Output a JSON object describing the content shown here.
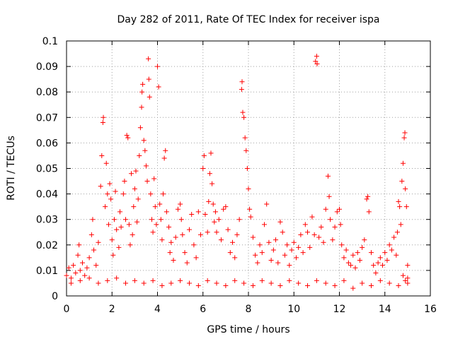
{
  "chart_data": {
    "type": "scatter",
    "title": "Day 282 of 2011, Rate Of TEC Index for receiver ispa",
    "xlabel": "GPS time / hours",
    "ylabel": "ROTI / TECUs",
    "xlim": [
      0,
      16
    ],
    "ylim": [
      0,
      0.1
    ],
    "xticks": [
      "0",
      "2",
      "4",
      "6",
      "8",
      "10",
      "12",
      "14",
      "16"
    ],
    "yticks": [
      "0",
      "0.01",
      "0.02",
      "0.03",
      "0.04",
      "0.05",
      "0.06",
      "0.07",
      "0.08",
      "0.09",
      "0.1"
    ],
    "xtick_values": [
      0,
      2,
      4,
      6,
      8,
      10,
      12,
      14,
      16
    ],
    "ytick_values": [
      0,
      0.01,
      0.02,
      0.03,
      0.04,
      0.05,
      0.06,
      0.07,
      0.08,
      0.09,
      0.1
    ],
    "grid": true,
    "marker": "plus",
    "color": "#ff0000",
    "series": [
      {
        "points": [
          [
            0.0,
            0.008
          ],
          [
            0.1,
            0.011
          ],
          [
            0.2,
            0.007
          ],
          [
            0.3,
            0.012
          ],
          [
            0.4,
            0.009
          ],
          [
            0.5,
            0.016
          ],
          [
            0.55,
            0.02
          ],
          [
            0.6,
            0.01
          ],
          [
            0.7,
            0.013
          ],
          [
            0.8,
            0.008
          ],
          [
            0.9,
            0.011
          ],
          [
            1.0,
            0.015
          ],
          [
            1.1,
            0.024
          ],
          [
            1.15,
            0.03
          ],
          [
            1.2,
            0.018
          ],
          [
            1.3,
            0.012
          ],
          [
            1.4,
            0.021
          ],
          [
            1.5,
            0.043
          ],
          [
            1.55,
            0.055
          ],
          [
            1.6,
            0.068
          ],
          [
            1.62,
            0.07
          ],
          [
            1.7,
            0.035
          ],
          [
            1.75,
            0.052
          ],
          [
            1.8,
            0.04
          ],
          [
            1.85,
            0.028
          ],
          [
            1.9,
            0.044
          ],
          [
            1.95,
            0.038
          ],
          [
            2.0,
            0.022
          ],
          [
            2.05,
            0.016
          ],
          [
            2.1,
            0.03
          ],
          [
            2.15,
            0.041
          ],
          [
            2.2,
            0.026
          ],
          [
            2.3,
            0.019
          ],
          [
            2.35,
            0.033
          ],
          [
            2.4,
            0.027
          ],
          [
            2.5,
            0.04
          ],
          [
            2.55,
            0.045
          ],
          [
            2.6,
            0.03
          ],
          [
            2.65,
            0.063
          ],
          [
            2.7,
            0.062
          ],
          [
            2.75,
            0.028
          ],
          [
            2.8,
            0.02
          ],
          [
            2.85,
            0.048
          ],
          [
            2.9,
            0.024
          ],
          [
            2.95,
            0.035
          ],
          [
            3.0,
            0.042
          ],
          [
            3.05,
            0.049
          ],
          [
            3.1,
            0.029
          ],
          [
            3.15,
            0.038
          ],
          [
            3.2,
            0.055
          ],
          [
            3.25,
            0.066
          ],
          [
            3.3,
            0.074
          ],
          [
            3.32,
            0.08
          ],
          [
            3.35,
            0.083
          ],
          [
            3.4,
            0.061
          ],
          [
            3.45,
            0.057
          ],
          [
            3.5,
            0.051
          ],
          [
            3.55,
            0.045
          ],
          [
            3.6,
            0.093
          ],
          [
            3.62,
            0.085
          ],
          [
            3.65,
            0.078
          ],
          [
            3.7,
            0.04
          ],
          [
            3.75,
            0.03
          ],
          [
            3.8,
            0.025
          ],
          [
            3.85,
            0.046
          ],
          [
            3.9,
            0.035
          ],
          [
            3.95,
            0.028
          ],
          [
            4.0,
            0.09
          ],
          [
            4.05,
            0.082
          ],
          [
            4.1,
            0.036
          ],
          [
            4.15,
            0.03
          ],
          [
            4.2,
            0.022
          ],
          [
            4.25,
            0.04
          ],
          [
            4.3,
            0.054
          ],
          [
            4.35,
            0.057
          ],
          [
            4.4,
            0.033
          ],
          [
            4.5,
            0.027
          ],
          [
            4.55,
            0.017
          ],
          [
            4.6,
            0.021
          ],
          [
            4.7,
            0.014
          ],
          [
            4.8,
            0.023
          ],
          [
            4.9,
            0.034
          ],
          [
            5.0,
            0.036
          ],
          [
            5.05,
            0.03
          ],
          [
            5.1,
            0.024
          ],
          [
            5.2,
            0.017
          ],
          [
            5.3,
            0.013
          ],
          [
            5.4,
            0.026
          ],
          [
            5.5,
            0.032
          ],
          [
            5.6,
            0.02
          ],
          [
            5.7,
            0.015
          ],
          [
            5.8,
            0.033
          ],
          [
            5.9,
            0.024
          ],
          [
            6.0,
            0.05
          ],
          [
            6.05,
            0.055
          ],
          [
            6.1,
            0.032
          ],
          [
            6.2,
            0.025
          ],
          [
            6.25,
            0.037
          ],
          [
            6.3,
            0.048
          ],
          [
            6.35,
            0.056
          ],
          [
            6.4,
            0.044
          ],
          [
            6.45,
            0.036
          ],
          [
            6.5,
            0.029
          ],
          [
            6.55,
            0.033
          ],
          [
            6.6,
            0.025
          ],
          [
            6.7,
            0.03
          ],
          [
            6.8,
            0.022
          ],
          [
            6.9,
            0.034
          ],
          [
            7.0,
            0.035
          ],
          [
            7.1,
            0.026
          ],
          [
            7.2,
            0.017
          ],
          [
            7.3,
            0.021
          ],
          [
            7.4,
            0.015
          ],
          [
            7.5,
            0.024
          ],
          [
            7.6,
            0.03
          ],
          [
            7.7,
            0.081
          ],
          [
            7.72,
            0.084
          ],
          [
            7.75,
            0.072
          ],
          [
            7.8,
            0.07
          ],
          [
            7.85,
            0.062
          ],
          [
            7.9,
            0.057
          ],
          [
            7.95,
            0.05
          ],
          [
            8.0,
            0.042
          ],
          [
            8.05,
            0.034
          ],
          [
            8.1,
            0.031
          ],
          [
            8.2,
            0.023
          ],
          [
            8.3,
            0.016
          ],
          [
            8.4,
            0.013
          ],
          [
            8.5,
            0.02
          ],
          [
            8.6,
            0.017
          ],
          [
            8.7,
            0.028
          ],
          [
            8.8,
            0.036
          ],
          [
            8.9,
            0.021
          ],
          [
            9.0,
            0.014
          ],
          [
            9.1,
            0.018
          ],
          [
            9.2,
            0.022
          ],
          [
            9.3,
            0.013
          ],
          [
            9.4,
            0.029
          ],
          [
            9.5,
            0.025
          ],
          [
            9.6,
            0.016
          ],
          [
            9.7,
            0.02
          ],
          [
            9.8,
            0.012
          ],
          [
            9.9,
            0.018
          ],
          [
            10.0,
            0.021
          ],
          [
            10.1,
            0.015
          ],
          [
            10.2,
            0.019
          ],
          [
            10.3,
            0.024
          ],
          [
            10.4,
            0.017
          ],
          [
            10.5,
            0.028
          ],
          [
            10.6,
            0.025
          ],
          [
            10.7,
            0.019
          ],
          [
            10.8,
            0.031
          ],
          [
            10.9,
            0.024
          ],
          [
            10.95,
            0.092
          ],
          [
            11.0,
            0.094
          ],
          [
            11.02,
            0.091
          ],
          [
            11.1,
            0.023
          ],
          [
            11.2,
            0.027
          ],
          [
            11.3,
            0.021
          ],
          [
            11.4,
            0.034
          ],
          [
            11.5,
            0.047
          ],
          [
            11.55,
            0.039
          ],
          [
            11.6,
            0.03
          ],
          [
            11.7,
            0.022
          ],
          [
            11.8,
            0.027
          ],
          [
            11.9,
            0.033
          ],
          [
            12.0,
            0.034
          ],
          [
            12.05,
            0.028
          ],
          [
            12.1,
            0.02
          ],
          [
            12.2,
            0.015
          ],
          [
            12.3,
            0.018
          ],
          [
            12.4,
            0.013
          ],
          [
            12.5,
            0.012
          ],
          [
            12.6,
            0.016
          ],
          [
            12.7,
            0.011
          ],
          [
            12.8,
            0.017
          ],
          [
            12.9,
            0.014
          ],
          [
            13.0,
            0.019
          ],
          [
            13.1,
            0.022
          ],
          [
            13.2,
            0.038
          ],
          [
            13.25,
            0.039
          ],
          [
            13.3,
            0.033
          ],
          [
            13.4,
            0.017
          ],
          [
            13.5,
            0.012
          ],
          [
            13.6,
            0.009
          ],
          [
            13.7,
            0.013
          ],
          [
            13.8,
            0.015
          ],
          [
            13.9,
            0.012
          ],
          [
            14.0,
            0.017
          ],
          [
            14.1,
            0.014
          ],
          [
            14.2,
            0.02
          ],
          [
            14.3,
            0.018
          ],
          [
            14.4,
            0.023
          ],
          [
            14.5,
            0.016
          ],
          [
            14.55,
            0.025
          ],
          [
            14.6,
            0.037
          ],
          [
            14.65,
            0.035
          ],
          [
            14.7,
            0.028
          ],
          [
            14.75,
            0.045
          ],
          [
            14.8,
            0.052
          ],
          [
            14.85,
            0.062
          ],
          [
            14.88,
            0.064
          ],
          [
            14.9,
            0.042
          ],
          [
            14.95,
            0.035
          ],
          [
            15.0,
            0.012
          ],
          [
            15.0,
            0.007
          ],
          [
            14.9,
            0.006
          ],
          [
            14.8,
            0.008
          ],
          [
            0.2,
            0.005
          ],
          [
            0.6,
            0.006
          ],
          [
            1.0,
            0.007
          ],
          [
            1.4,
            0.005
          ],
          [
            1.8,
            0.006
          ],
          [
            2.2,
            0.007
          ],
          [
            2.6,
            0.005
          ],
          [
            3.0,
            0.006
          ],
          [
            3.4,
            0.005
          ],
          [
            3.8,
            0.006
          ],
          [
            4.2,
            0.004
          ],
          [
            4.6,
            0.005
          ],
          [
            5.0,
            0.006
          ],
          [
            5.4,
            0.005
          ],
          [
            5.8,
            0.004
          ],
          [
            6.2,
            0.006
          ],
          [
            6.6,
            0.005
          ],
          [
            7.0,
            0.004
          ],
          [
            7.4,
            0.006
          ],
          [
            7.8,
            0.005
          ],
          [
            8.2,
            0.004
          ],
          [
            8.6,
            0.006
          ],
          [
            9.0,
            0.005
          ],
          [
            9.4,
            0.004
          ],
          [
            9.8,
            0.006
          ],
          [
            10.2,
            0.005
          ],
          [
            10.6,
            0.004
          ],
          [
            11.0,
            0.006
          ],
          [
            11.4,
            0.005
          ],
          [
            11.8,
            0.004
          ],
          [
            12.2,
            0.006
          ],
          [
            12.6,
            0.003
          ],
          [
            13.0,
            0.005
          ],
          [
            13.4,
            0.004
          ],
          [
            13.8,
            0.006
          ],
          [
            14.2,
            0.005
          ],
          [
            14.6,
            0.004
          ],
          [
            15.0,
            0.005
          ]
        ]
      }
    ]
  }
}
